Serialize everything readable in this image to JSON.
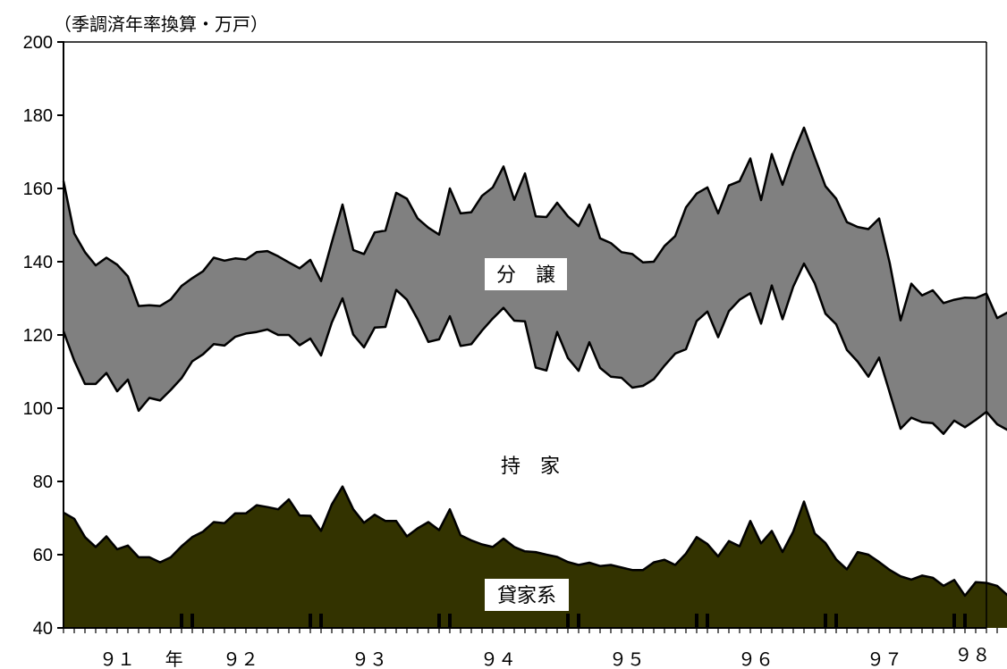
{
  "chart_data": {
    "type": "area",
    "title": "",
    "xlabel": "",
    "ylabel": "（季調済年率換算・万戸）",
    "ylim": [
      40,
      200
    ],
    "y_ticks": [
      "200",
      "180",
      "160",
      "140",
      "120",
      "100",
      "80",
      "60",
      "40"
    ],
    "x_ticks": [
      "９１",
      "年",
      "９２",
      "９３",
      "９４",
      "９５",
      "９６",
      "９７",
      "９８"
    ],
    "x_range": [
      0,
      86
    ],
    "grid": false,
    "legend": "none",
    "colors": {
      "rental": "#333300",
      "owner": "#ffffff",
      "condo": "#808080",
      "stroke": "#000000"
    },
    "region_labels": {
      "condo": "分　譲",
      "owner": "持　家",
      "rental": "貸家系"
    },
    "series": [
      {
        "key": "rental",
        "values": [
          71.5,
          69.8,
          64.8,
          62.1,
          65.0,
          61.5,
          62.5,
          59.3,
          59.3,
          57.9,
          59.3,
          62.3,
          64.8,
          66.3,
          68.9,
          68.6,
          71.3,
          71.3,
          73.5,
          73.0,
          72.4,
          75.1,
          70.7,
          70.6,
          66.5,
          73.7,
          78.6,
          72.4,
          68.7,
          70.9,
          69.2,
          69.2,
          65.0,
          67.2,
          68.9,
          66.7,
          72.4,
          65.3,
          63.9,
          62.8,
          62.1,
          64.4,
          62.1,
          60.9,
          60.7,
          60.0,
          59.4,
          58.0,
          57.2,
          57.8,
          56.9,
          57.2,
          56.5,
          55.8,
          55.8,
          57.9,
          58.6,
          57.2,
          60.3,
          64.8,
          62.9,
          59.5,
          63.7,
          62.3,
          69.2,
          63.1,
          66.5,
          60.7,
          66.3,
          74.5,
          65.8,
          63.2,
          58.7,
          56.0,
          60.7,
          60.0,
          58.0,
          55.8,
          54.1,
          53.2,
          54.3,
          53.7,
          51.5,
          53.1,
          48.8,
          52.5,
          52.3,
          51.5,
          48.8,
          49.0
        ]
      },
      {
        "key": "owner_top",
        "values": [
          121.0,
          113.0,
          106.6,
          106.6,
          109.6,
          104.6,
          107.8,
          99.3,
          102.8,
          102.1,
          105.0,
          108.2,
          112.8,
          114.7,
          117.5,
          117.1,
          119.5,
          120.4,
          120.8,
          121.5,
          120.0,
          120.0,
          117.2,
          119.0,
          114.4,
          123.4,
          130.0,
          120.1,
          116.6,
          122.0,
          122.2,
          132.3,
          129.6,
          124.3,
          118.1,
          118.8,
          125.1,
          117.0,
          117.5,
          121.2,
          124.5,
          127.4,
          123.9,
          123.7,
          111.1,
          110.3,
          120.8,
          113.7,
          110.2,
          118.0,
          111.0,
          108.6,
          108.3,
          105.6,
          106.1,
          107.9,
          111.6,
          114.9,
          116.1,
          123.8,
          126.4,
          119.4,
          126.5,
          129.6,
          131.4,
          123.1,
          133.5,
          124.3,
          133.2,
          139.5,
          134.1,
          125.8,
          122.9,
          115.9,
          112.7,
          108.6,
          113.8,
          104.1,
          94.4,
          97.4,
          96.2,
          95.9,
          93.0,
          96.6,
          94.8,
          96.8,
          99.0,
          95.6,
          94.0,
          94.2
        ]
      },
      {
        "key": "condo_top",
        "values": [
          162.0,
          147.7,
          142.6,
          139.0,
          141.1,
          139.2,
          136.0,
          127.9,
          128.1,
          127.9,
          129.7,
          133.4,
          135.5,
          137.4,
          141.1,
          140.3,
          140.9,
          140.6,
          142.6,
          142.9,
          141.5,
          139.8,
          138.2,
          140.5,
          134.7,
          145.3,
          155.6,
          143.2,
          142.1,
          148.0,
          148.5,
          158.8,
          157.2,
          151.8,
          149.3,
          147.4,
          160.0,
          153.2,
          153.5,
          158.0,
          160.3,
          166.0,
          156.9,
          164.1,
          152.4,
          152.2,
          156.1,
          152.4,
          149.7,
          155.6,
          146.4,
          145.1,
          142.6,
          142.1,
          139.8,
          140.0,
          144.3,
          147.0,
          154.8,
          158.6,
          160.3,
          153.2,
          160.8,
          162.0,
          168.2,
          156.8,
          169.4,
          161.0,
          169.5,
          176.6,
          168.5,
          160.6,
          157.2,
          150.8,
          149.5,
          148.9,
          151.8,
          139.5,
          124.0,
          134.0,
          130.8,
          132.2,
          128.7,
          129.6,
          130.2,
          130.1,
          131.3,
          124.6,
          126.2,
          123.4
        ]
      }
    ]
  }
}
